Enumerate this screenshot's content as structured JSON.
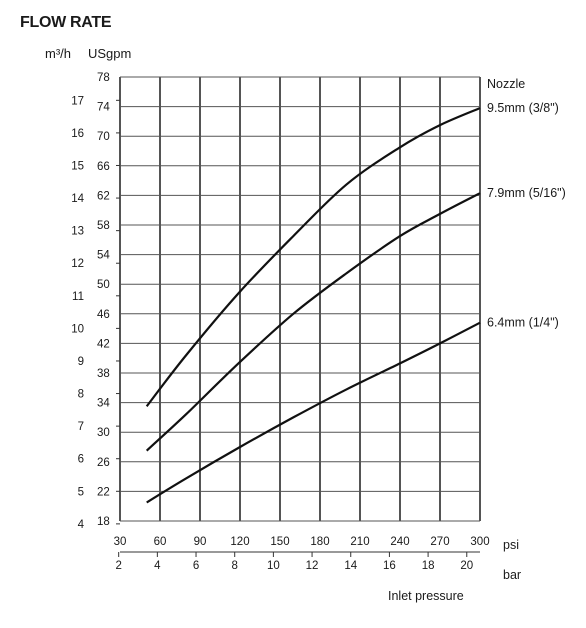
{
  "chart_data": {
    "type": "line",
    "title": "FLOW RATE",
    "y_left_unit": "m³/h",
    "y_right_unit": "USgpm",
    "x_unit_psi": "psi",
    "x_unit_bar": "bar",
    "xlabel": "Inlet pressure",
    "legend_title": "Nozzle",
    "x_psi_ticks": [
      "30",
      "60",
      "90",
      "120",
      "150",
      "180",
      "210",
      "240",
      "270",
      "300"
    ],
    "x_bar_ticks": [
      "2",
      "4",
      "6",
      "8",
      "10",
      "12",
      "14",
      "16",
      "18",
      "20"
    ],
    "y_usgpm_ticks": [
      "18",
      "22",
      "26",
      "30",
      "34",
      "38",
      "42",
      "46",
      "50",
      "54",
      "58",
      "62",
      "66",
      "70",
      "74",
      "78"
    ],
    "y_m3h_ticks": [
      "4",
      "5",
      "6",
      "7",
      "8",
      "9",
      "10",
      "11",
      "12",
      "13",
      "14",
      "15",
      "16",
      "17"
    ],
    "xlim_psi": [
      30,
      300
    ],
    "ylim_usgpm": [
      18,
      78
    ],
    "grid": true,
    "series": [
      {
        "name": "9.5mm  (3/8\")",
        "x_psi": [
          50,
          80,
          120,
          160,
          200,
          240,
          270,
          300
        ],
        "y_usgpm": [
          33.5,
          40.5,
          49,
          56.5,
          63.5,
          68.5,
          71.5,
          73.8
        ]
      },
      {
        "name": "7.9mm  (5/16\")",
        "x_psi": [
          50,
          80,
          120,
          160,
          200,
          240,
          270,
          300
        ],
        "y_usgpm": [
          27.5,
          32.5,
          39.5,
          46,
          51.5,
          56.5,
          59.5,
          62.3
        ]
      },
      {
        "name": "6.4mm  (1/4\")",
        "x_psi": [
          50,
          80,
          120,
          160,
          200,
          240,
          270,
          300
        ],
        "y_usgpm": [
          20.5,
          23.8,
          28,
          32,
          35.8,
          39.3,
          42,
          44.8
        ]
      }
    ]
  }
}
